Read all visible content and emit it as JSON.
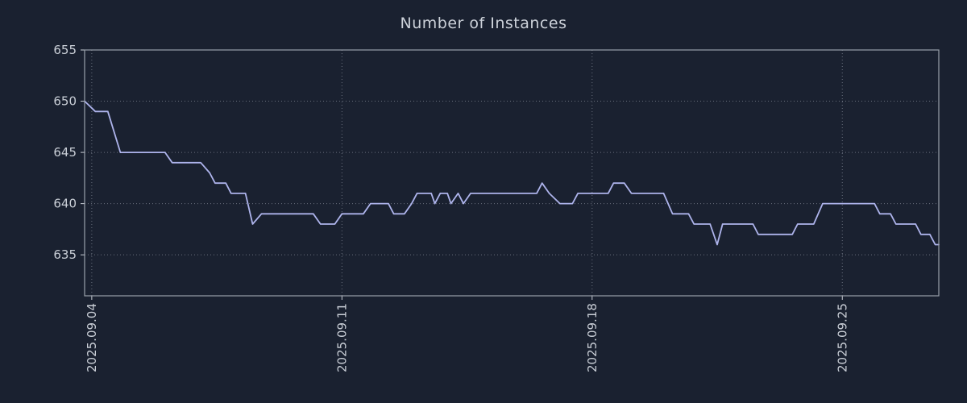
{
  "title": "Number of Instances",
  "chart_data": {
    "type": "line",
    "title": "Number of Instances",
    "xlabel": "",
    "ylabel": "",
    "x_unit": "days since 2025-09-04",
    "xlim": [
      -0.2,
      23.7
    ],
    "ylim": [
      631,
      655
    ],
    "yticks": [
      635,
      640,
      645,
      650,
      655
    ],
    "xticks": [
      {
        "pos": 0,
        "label": "2025.09.04"
      },
      {
        "pos": 7,
        "label": "2025.09.11"
      },
      {
        "pos": 14,
        "label": "2025.09.18"
      },
      {
        "pos": 21,
        "label": "2025.09.25"
      }
    ],
    "grid": "dotted",
    "legend": "none",
    "series": [
      {
        "name": "instances",
        "points": [
          [
            -0.2,
            650
          ],
          [
            0.1,
            649
          ],
          [
            0.45,
            649
          ],
          [
            0.8,
            645
          ],
          [
            2.05,
            645
          ],
          [
            2.25,
            644
          ],
          [
            3.05,
            644
          ],
          [
            3.3,
            643
          ],
          [
            3.45,
            642
          ],
          [
            3.75,
            642
          ],
          [
            3.9,
            641
          ],
          [
            4.3,
            641
          ],
          [
            4.5,
            638
          ],
          [
            4.75,
            639
          ],
          [
            6.2,
            639
          ],
          [
            6.4,
            638
          ],
          [
            6.8,
            638
          ],
          [
            7.0,
            639
          ],
          [
            7.6,
            639
          ],
          [
            7.8,
            640
          ],
          [
            8.3,
            640
          ],
          [
            8.45,
            639
          ],
          [
            8.75,
            639
          ],
          [
            8.95,
            640
          ],
          [
            9.1,
            641
          ],
          [
            9.5,
            641
          ],
          [
            9.6,
            640
          ],
          [
            9.75,
            641
          ],
          [
            9.95,
            641
          ],
          [
            10.05,
            640
          ],
          [
            10.25,
            641
          ],
          [
            10.4,
            640
          ],
          [
            10.6,
            641
          ],
          [
            12.45,
            641
          ],
          [
            12.6,
            642
          ],
          [
            12.8,
            641
          ],
          [
            13.1,
            640
          ],
          [
            13.45,
            640
          ],
          [
            13.6,
            641
          ],
          [
            14.45,
            641
          ],
          [
            14.6,
            642
          ],
          [
            14.9,
            642
          ],
          [
            15.1,
            641
          ],
          [
            16.0,
            641
          ],
          [
            16.25,
            639
          ],
          [
            16.7,
            639
          ],
          [
            16.85,
            638
          ],
          [
            17.3,
            638
          ],
          [
            17.5,
            636
          ],
          [
            17.65,
            638
          ],
          [
            18.5,
            638
          ],
          [
            18.65,
            637
          ],
          [
            19.6,
            637
          ],
          [
            19.75,
            638
          ],
          [
            20.2,
            638
          ],
          [
            20.45,
            640
          ],
          [
            21.9,
            640
          ],
          [
            22.05,
            639
          ],
          [
            22.35,
            639
          ],
          [
            22.5,
            638
          ],
          [
            23.05,
            638
          ],
          [
            23.2,
            637
          ],
          [
            23.45,
            637
          ],
          [
            23.6,
            636
          ],
          [
            23.7,
            636
          ]
        ]
      }
    ],
    "colors": {
      "background": "#1a2130",
      "line": "#aeb4ec",
      "grid": "#c7cdd8",
      "frame": "#9aa0aa",
      "text": "#c9ced6",
      "title": "#cdd2da"
    }
  }
}
